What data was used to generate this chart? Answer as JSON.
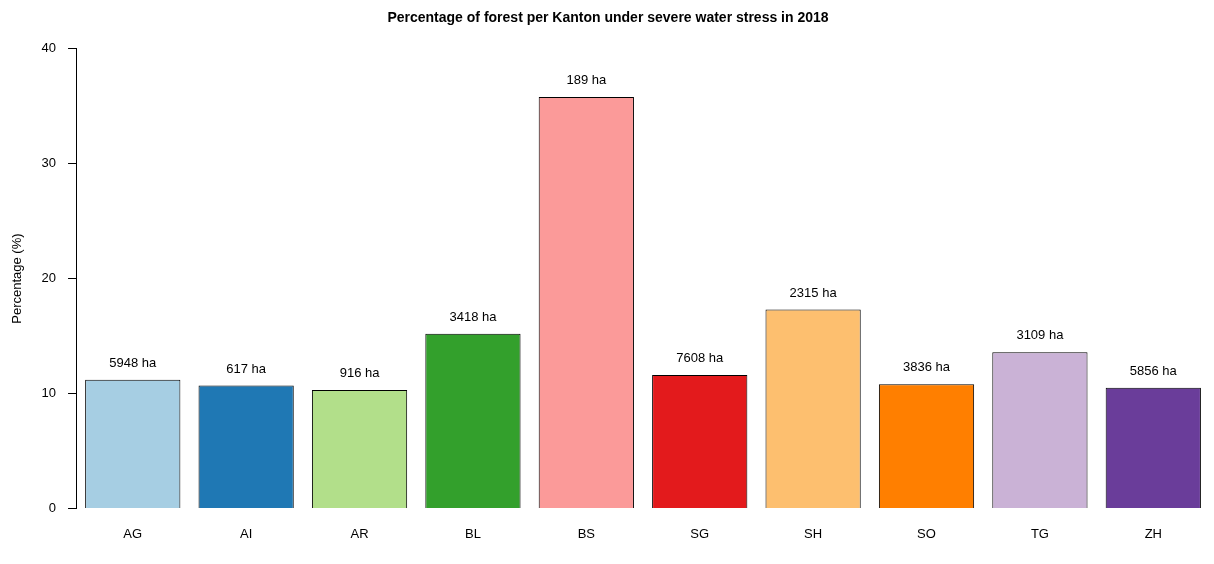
{
  "chart_data": {
    "type": "bar",
    "title": "Percentage of forest per Kanton under severe water stress in 2018",
    "ylabel": "Percentage (%)",
    "categories": [
      "AG",
      "AI",
      "AR",
      "BL",
      "BS",
      "SG",
      "SH",
      "SO",
      "TG",
      "ZH"
    ],
    "values": [
      11.2,
      10.7,
      10.3,
      15.2,
      35.8,
      11.6,
      17.3,
      10.8,
      13.6,
      10.5
    ],
    "colors": [
      "#a6cee3",
      "#1f78b4",
      "#b2df8a",
      "#33a02c",
      "#fb9a99",
      "#e31a1c",
      "#fdbf6f",
      "#ff7f00",
      "#cab2d6",
      "#6a3d9a"
    ],
    "ylim": [
      0,
      40
    ],
    "yticks": [
      0,
      10,
      20,
      30,
      40
    ],
    "grid": false,
    "legend": false,
    "annotations": [
      {
        "text": "5948 ha",
        "x": "AG",
        "y": 11.2
      },
      {
        "text": "617 ha",
        "x": "AI",
        "y": 10.7
      },
      {
        "text": "916 ha",
        "x": "AR",
        "y": 10.3
      },
      {
        "text": "3418 ha",
        "x": "BL",
        "y": 15.2
      },
      {
        "text": "189 ha",
        "x": "BS",
        "y": 35.8
      },
      {
        "text": "7608 ha",
        "x": "SG",
        "y": 11.6
      },
      {
        "text": "2315 ha",
        "x": "SH",
        "y": 17.3
      },
      {
        "text": "3836 ha",
        "x": "SO",
        "y": 10.8
      },
      {
        "text": "3109 ha",
        "x": "TG",
        "y": 13.6
      },
      {
        "text": "5856 ha",
        "x": "ZH",
        "y": 10.5
      }
    ]
  }
}
